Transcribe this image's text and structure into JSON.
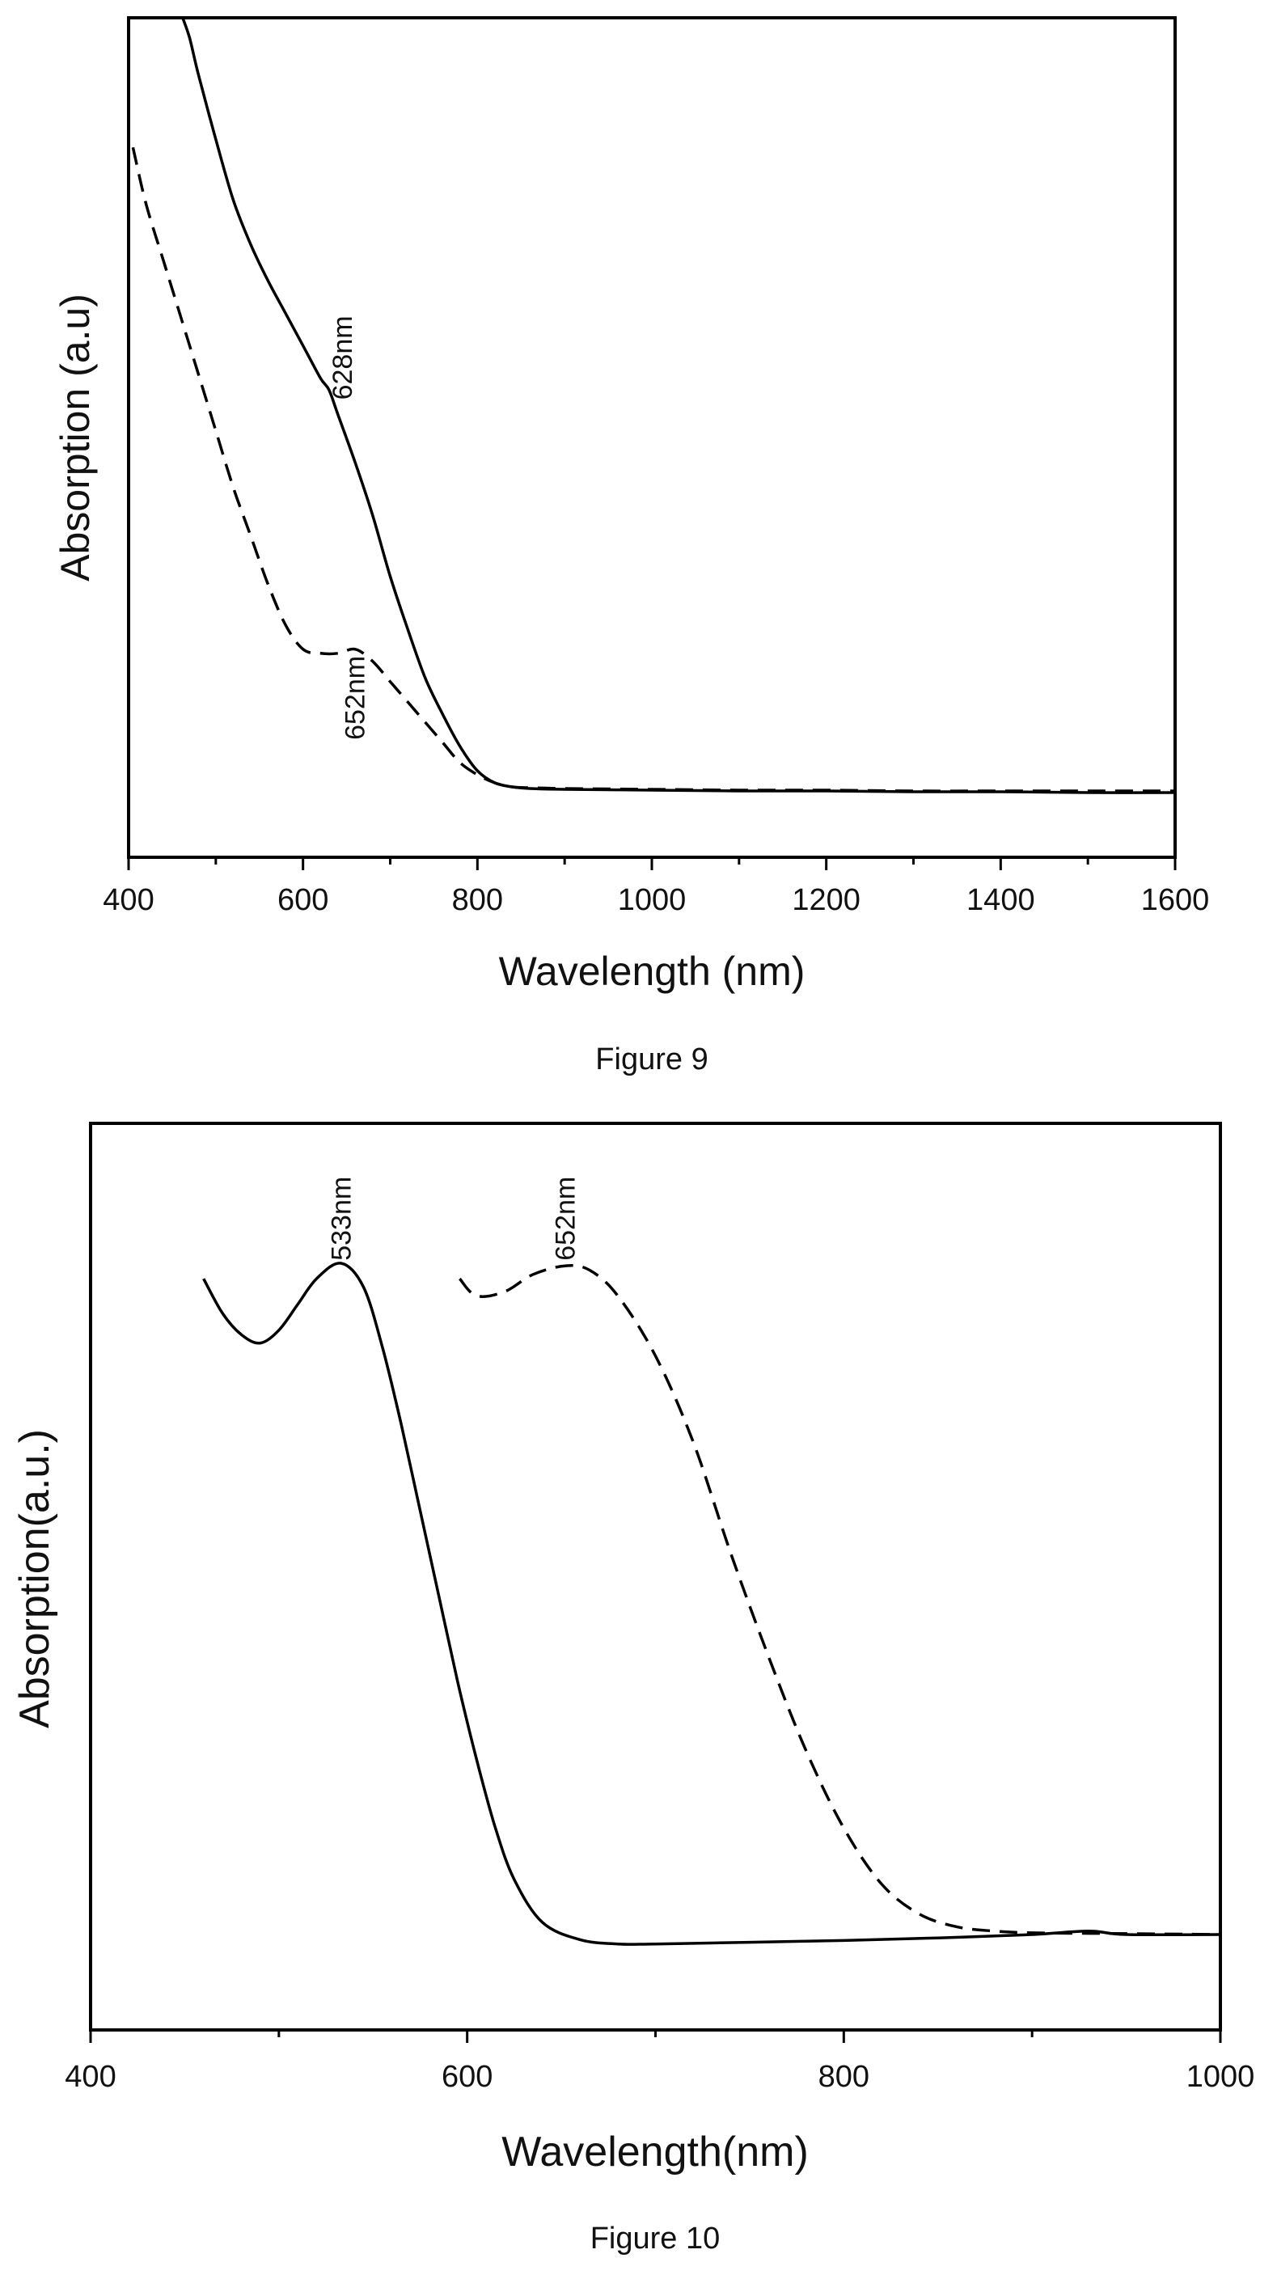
{
  "chart_data": [
    {
      "type": "line",
      "caption": "Figure 9",
      "xlabel": "Wavelength (nm)",
      "ylabel": "Absorption (a.u)",
      "xlim": [
        400,
        1600
      ],
      "ylim": [
        0,
        1
      ],
      "xticks": [
        400,
        600,
        800,
        1000,
        1200,
        1400,
        1600
      ],
      "minor_xticks": [
        500,
        700,
        900,
        1100,
        1300,
        1500
      ],
      "grid": false,
      "series": [
        {
          "style": "solid",
          "x": [
            462,
            470,
            480,
            500,
            520,
            540,
            560,
            580,
            600,
            620,
            630,
            640,
            660,
            680,
            700,
            720,
            740,
            760,
            780,
            800,
            820,
            840,
            860,
            900,
            1000,
            1100,
            1200,
            1300,
            1400,
            1500,
            1600
          ],
          "y": [
            1.0,
            0.975,
            0.93,
            0.85,
            0.775,
            0.72,
            0.675,
            0.635,
            0.595,
            0.555,
            0.54,
            0.51,
            0.45,
            0.385,
            0.31,
            0.245,
            0.185,
            0.14,
            0.1,
            0.07,
            0.055,
            0.05,
            0.048,
            0.047,
            0.046,
            0.045,
            0.045,
            0.044,
            0.044,
            0.043,
            0.043
          ]
        },
        {
          "style": "dashed",
          "x": [
            405,
            420,
            440,
            460,
            480,
            500,
            520,
            540,
            560,
            580,
            600,
            620,
            640,
            660,
            680,
            700,
            720,
            740,
            760,
            780,
            800,
            820,
            840,
            860,
            900,
            1000,
            1100,
            1200,
            1300,
            1400,
            1500,
            1600
          ],
          "y": [
            0.84,
            0.77,
            0.7,
            0.63,
            0.56,
            0.49,
            0.42,
            0.36,
            0.3,
            0.25,
            0.22,
            0.215,
            0.215,
            0.22,
            0.205,
            0.18,
            0.155,
            0.13,
            0.105,
            0.08,
            0.065,
            0.055,
            0.05,
            0.049,
            0.048,
            0.047,
            0.046,
            0.046,
            0.045,
            0.045,
            0.045,
            0.045
          ]
        }
      ],
      "annotations": [
        {
          "text": "628nm",
          "x": 628,
          "y": 0.58
        },
        {
          "text": "652nm",
          "x": 652,
          "y": 0.16
        }
      ]
    },
    {
      "type": "line",
      "caption": "Figure 10",
      "xlabel": "Wavelength(nm)",
      "ylabel": "Absorption(a.u.)",
      "xlim": [
        400,
        1000
      ],
      "ylim": [
        0,
        1
      ],
      "xticks": [
        400,
        600,
        800,
        1000
      ],
      "minor_xticks": [
        500,
        700,
        900
      ],
      "grid": false,
      "series": [
        {
          "style": "solid",
          "x": [
            460,
            470,
            480,
            490,
            500,
            510,
            520,
            533,
            545,
            555,
            565,
            575,
            585,
            595,
            605,
            615,
            625,
            640,
            660,
            680,
            700,
            750,
            800,
            850,
            900,
            930,
            950,
            1000
          ],
          "y": [
            0.83,
            0.79,
            0.765,
            0.755,
            0.77,
            0.8,
            0.83,
            0.848,
            0.82,
            0.75,
            0.66,
            0.56,
            0.46,
            0.36,
            0.27,
            0.19,
            0.13,
            0.08,
            0.06,
            0.055,
            0.055,
            0.057,
            0.059,
            0.062,
            0.066,
            0.07,
            0.066,
            0.066
          ]
        },
        {
          "style": "dashed",
          "x": [
            596,
            605,
            620,
            635,
            652,
            665,
            680,
            700,
            720,
            740,
            760,
            780,
            800,
            820,
            840,
            860,
            880,
            900,
            950,
            1000
          ],
          "y": [
            0.83,
            0.81,
            0.815,
            0.835,
            0.845,
            0.84,
            0.81,
            0.74,
            0.64,
            0.51,
            0.39,
            0.28,
            0.19,
            0.125,
            0.09,
            0.075,
            0.07,
            0.068,
            0.067,
            0.066
          ]
        }
      ],
      "annotations": [
        {
          "text": "533nm",
          "x": 533,
          "y": 0.9
        },
        {
          "text": "652nm",
          "x": 652,
          "y": 0.9
        }
      ]
    }
  ]
}
